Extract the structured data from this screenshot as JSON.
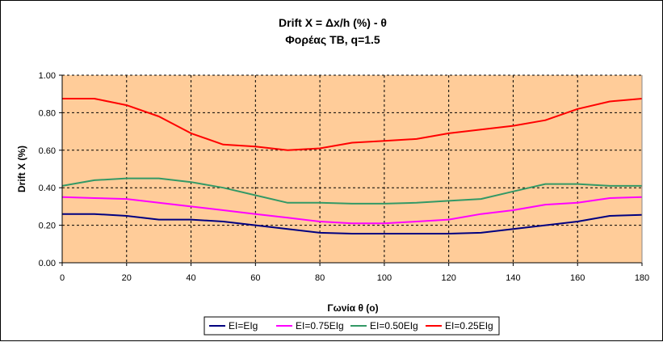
{
  "chart_data": {
    "type": "line",
    "title": "Drift X = Δx/h (%) - θ",
    "subtitle": "Φορέας TB, q=1.5",
    "xlabel": "Γωνία θ (ο)",
    "ylabel": "Drift X (%)",
    "xlim": [
      0,
      180
    ],
    "ylim": [
      0,
      1.0
    ],
    "xticks": [
      "0",
      "20",
      "40",
      "60",
      "80",
      "100",
      "120",
      "140",
      "160",
      "180"
    ],
    "yticks": [
      "0.00",
      "0.20",
      "0.40",
      "0.60",
      "0.80",
      "1.00"
    ],
    "grid": true,
    "plot_background": "#FFCC99",
    "legend_position": "bottom",
    "x": [
      0,
      10,
      20,
      30,
      40,
      50,
      60,
      70,
      80,
      90,
      100,
      110,
      120,
      130,
      140,
      150,
      160,
      170,
      180
    ],
    "series": [
      {
        "name": "EI=EIg",
        "color": "#000080",
        "values": [
          0.26,
          0.26,
          0.25,
          0.23,
          0.23,
          0.22,
          0.2,
          0.18,
          0.16,
          0.155,
          0.155,
          0.155,
          0.155,
          0.16,
          0.18,
          0.2,
          0.22,
          0.25,
          0.255
        ]
      },
      {
        "name": "EI=0.75EIg",
        "color": "#FF00FF",
        "values": [
          0.35,
          0.345,
          0.34,
          0.32,
          0.3,
          0.28,
          0.26,
          0.24,
          0.22,
          0.21,
          0.21,
          0.22,
          0.23,
          0.26,
          0.28,
          0.31,
          0.32,
          0.345,
          0.35
        ]
      },
      {
        "name": "EI=0.50EIg",
        "color": "#339966",
        "values": [
          0.41,
          0.44,
          0.45,
          0.45,
          0.43,
          0.4,
          0.36,
          0.32,
          0.32,
          0.315,
          0.315,
          0.32,
          0.33,
          0.34,
          0.38,
          0.42,
          0.42,
          0.41,
          0.41
        ]
      },
      {
        "name": "EI=0.25EIg",
        "color": "#FF0000",
        "values": [
          0.875,
          0.875,
          0.84,
          0.78,
          0.69,
          0.63,
          0.62,
          0.6,
          0.61,
          0.64,
          0.65,
          0.66,
          0.69,
          0.71,
          0.73,
          0.76,
          0.82,
          0.86,
          0.875
        ]
      }
    ]
  }
}
